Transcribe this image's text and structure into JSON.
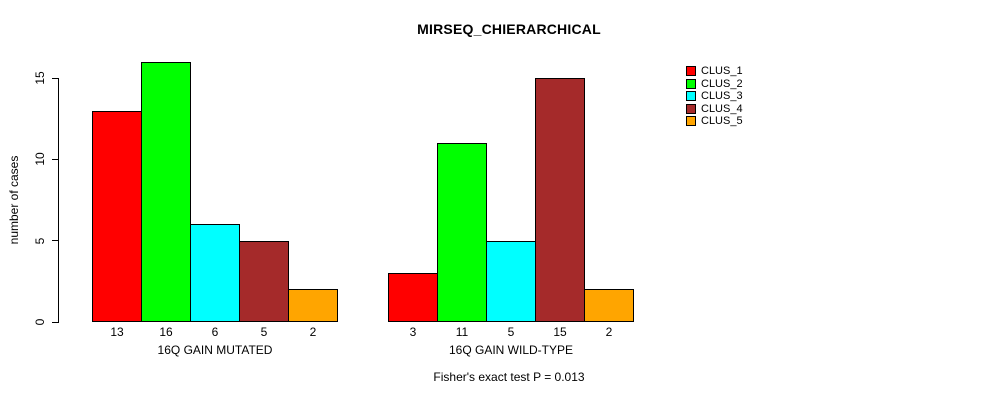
{
  "chart_data": {
    "type": "bar",
    "title": "MIRSEQ_CHIERARCHICAL",
    "ylabel": "number of cases",
    "xlabel": "",
    "ylim": [
      0,
      16
    ],
    "yticks": [
      0,
      5,
      10,
      15
    ],
    "grid": false,
    "legend_position": "right",
    "categories": [
      "16Q GAIN MUTATED",
      "16Q GAIN WILD-TYPE"
    ],
    "series": [
      {
        "name": "CLUS_1",
        "color": "#ff0000",
        "values": [
          13,
          3
        ]
      },
      {
        "name": "CLUS_2",
        "color": "#00ff00",
        "values": [
          16,
          11
        ]
      },
      {
        "name": "CLUS_3",
        "color": "#00ffff",
        "values": [
          6,
          5
        ]
      },
      {
        "name": "CLUS_4",
        "color": "#a52a2a",
        "values": [
          5,
          15
        ]
      },
      {
        "name": "CLUS_5",
        "color": "#ffa500",
        "values": [
          2,
          2
        ]
      }
    ],
    "annotation": "Fisher's exact test P = 0.013"
  }
}
